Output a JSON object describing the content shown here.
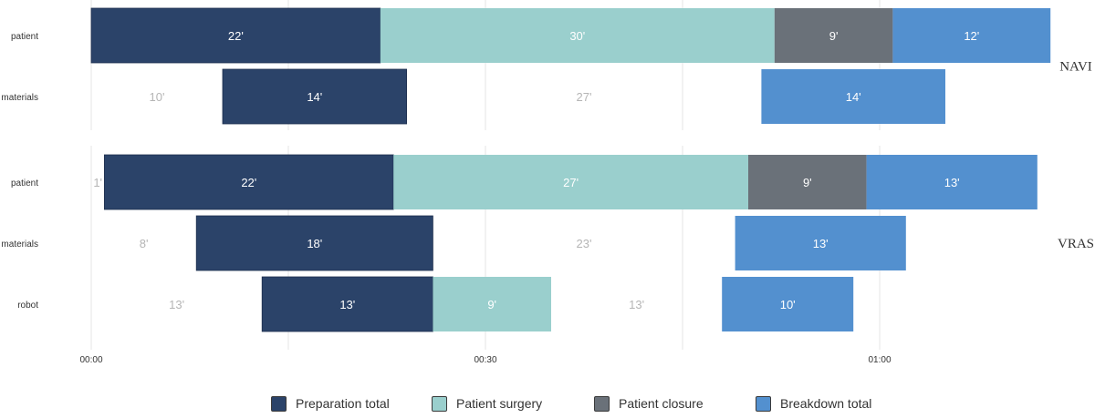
{
  "chart_data": {
    "type": "bar",
    "orientation": "horizontal-stacked-timeline",
    "title": "",
    "xlabel": "",
    "ylabel": "",
    "x_unit": "minutes",
    "x_ticks": [
      {
        "value": 0,
        "label": "00:00"
      },
      {
        "value": 30,
        "label": "00:30"
      },
      {
        "value": 60,
        "label": "01:00"
      }
    ],
    "grid": true,
    "legend_position": "bottom",
    "series": [
      {
        "key": "prep",
        "name": "Preparation total",
        "color": "#2b4369"
      },
      {
        "key": "surgery",
        "name": "Patient surgery",
        "color": "#9acfcd"
      },
      {
        "key": "closure",
        "name": "Patient closure",
        "color": "#6a7179"
      },
      {
        "key": "breakdown",
        "name": "Breakdown total",
        "color": "#5390cf"
      },
      {
        "key": "gap",
        "name": "",
        "color": "#b5b5b5"
      }
    ],
    "groups": [
      {
        "name": "NAVI",
        "rows": [
          {
            "label": "patient",
            "segments": [
              {
                "series": "prep",
                "start": 0,
                "duration": 22,
                "label": "22'"
              },
              {
                "series": "surgery",
                "start": 22,
                "duration": 30,
                "label": "30'"
              },
              {
                "series": "closure",
                "start": 52,
                "duration": 9,
                "label": "9'"
              },
              {
                "series": "breakdown",
                "start": 61,
                "duration": 12,
                "label": "12'"
              }
            ]
          },
          {
            "label": "materials",
            "segments": [
              {
                "series": "gap",
                "start": 0,
                "duration": 10,
                "label": "10'"
              },
              {
                "series": "prep",
                "start": 10,
                "duration": 14,
                "label": "14'"
              },
              {
                "series": "gap",
                "start": 24,
                "duration": 27,
                "label": "27'"
              },
              {
                "series": "breakdown",
                "start": 51,
                "duration": 14,
                "label": "14'"
              }
            ]
          }
        ]
      },
      {
        "name": "VRAS",
        "rows": [
          {
            "label": "patient",
            "segments": [
              {
                "series": "gap",
                "start": 0,
                "duration": 1,
                "label": "1'"
              },
              {
                "series": "prep",
                "start": 1,
                "duration": 22,
                "label": "22'"
              },
              {
                "series": "surgery",
                "start": 23,
                "duration": 27,
                "label": "27'"
              },
              {
                "series": "closure",
                "start": 50,
                "duration": 9,
                "label": "9'"
              },
              {
                "series": "breakdown",
                "start": 59,
                "duration": 13,
                "label": "13'"
              }
            ]
          },
          {
            "label": "materials",
            "segments": [
              {
                "series": "gap",
                "start": 0,
                "duration": 8,
                "label": "8'"
              },
              {
                "series": "prep",
                "start": 8,
                "duration": 18,
                "label": "18'"
              },
              {
                "series": "gap",
                "start": 26,
                "duration": 23,
                "label": "23'"
              },
              {
                "series": "breakdown",
                "start": 49,
                "duration": 13,
                "label": "13'"
              }
            ]
          },
          {
            "label": "robot",
            "segments": [
              {
                "series": "gap",
                "start": 0,
                "duration": 13,
                "label": "13'"
              },
              {
                "series": "prep",
                "start": 13,
                "duration": 13,
                "label": "13'"
              },
              {
                "series": "surgery",
                "start": 26,
                "duration": 9,
                "label": "9'"
              },
              {
                "series": "gap",
                "start": 35,
                "duration": 13,
                "label": "13'"
              },
              {
                "series": "breakdown",
                "start": 48,
                "duration": 10,
                "label": "10'"
              }
            ]
          }
        ]
      }
    ]
  }
}
